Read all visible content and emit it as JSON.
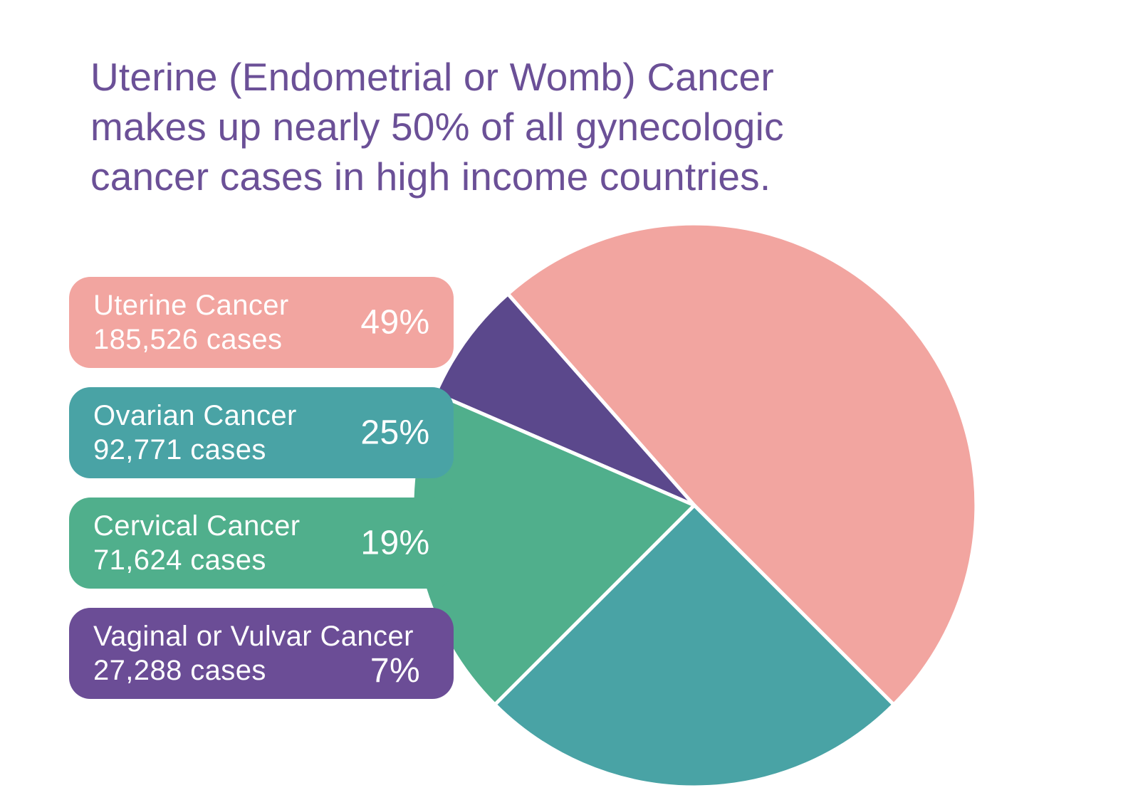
{
  "page": {
    "background": "#ffffff"
  },
  "title": {
    "lines": [
      "Uterine (Endometrial or Womb) Cancer",
      "makes up nearly 50% of all gynecologic",
      "cancer cases in high income countries."
    ],
    "color": "#6b5097"
  },
  "chart_data": {
    "type": "pie",
    "title": "Uterine (Endometrial or Womb) Cancer makes up nearly 50% of all gynecologic cancer cases in high income countries.",
    "unit": "cases",
    "legend_position": "left",
    "start_angle_deg": -45,
    "direction": "ccw",
    "draw_order": [
      0,
      3,
      2,
      1
    ],
    "separator_color": "#ffffff",
    "slices": [
      {
        "name": "Uterine Cancer",
        "value": 185526,
        "value_label": "185,526 cases",
        "pct": 49,
        "pct_label": "49%",
        "color": "#f2a5a0"
      },
      {
        "name": "Ovarian Cancer",
        "value": 92771,
        "value_label": "92,771 cases",
        "pct": 25,
        "pct_label": "25%",
        "color": "#49a3a5"
      },
      {
        "name": "Cervical Cancer",
        "value": 71624,
        "value_label": "71,624 cases",
        "pct": 19,
        "pct_label": "19%",
        "color": "#50af8c"
      },
      {
        "name": "Vaginal or Vulvar Cancer",
        "value": 27288,
        "value_label": "27,288 cases",
        "pct": 7,
        "pct_label": "7%",
        "color": "#6b4d96",
        "slice_color": "#5b488c"
      }
    ]
  }
}
